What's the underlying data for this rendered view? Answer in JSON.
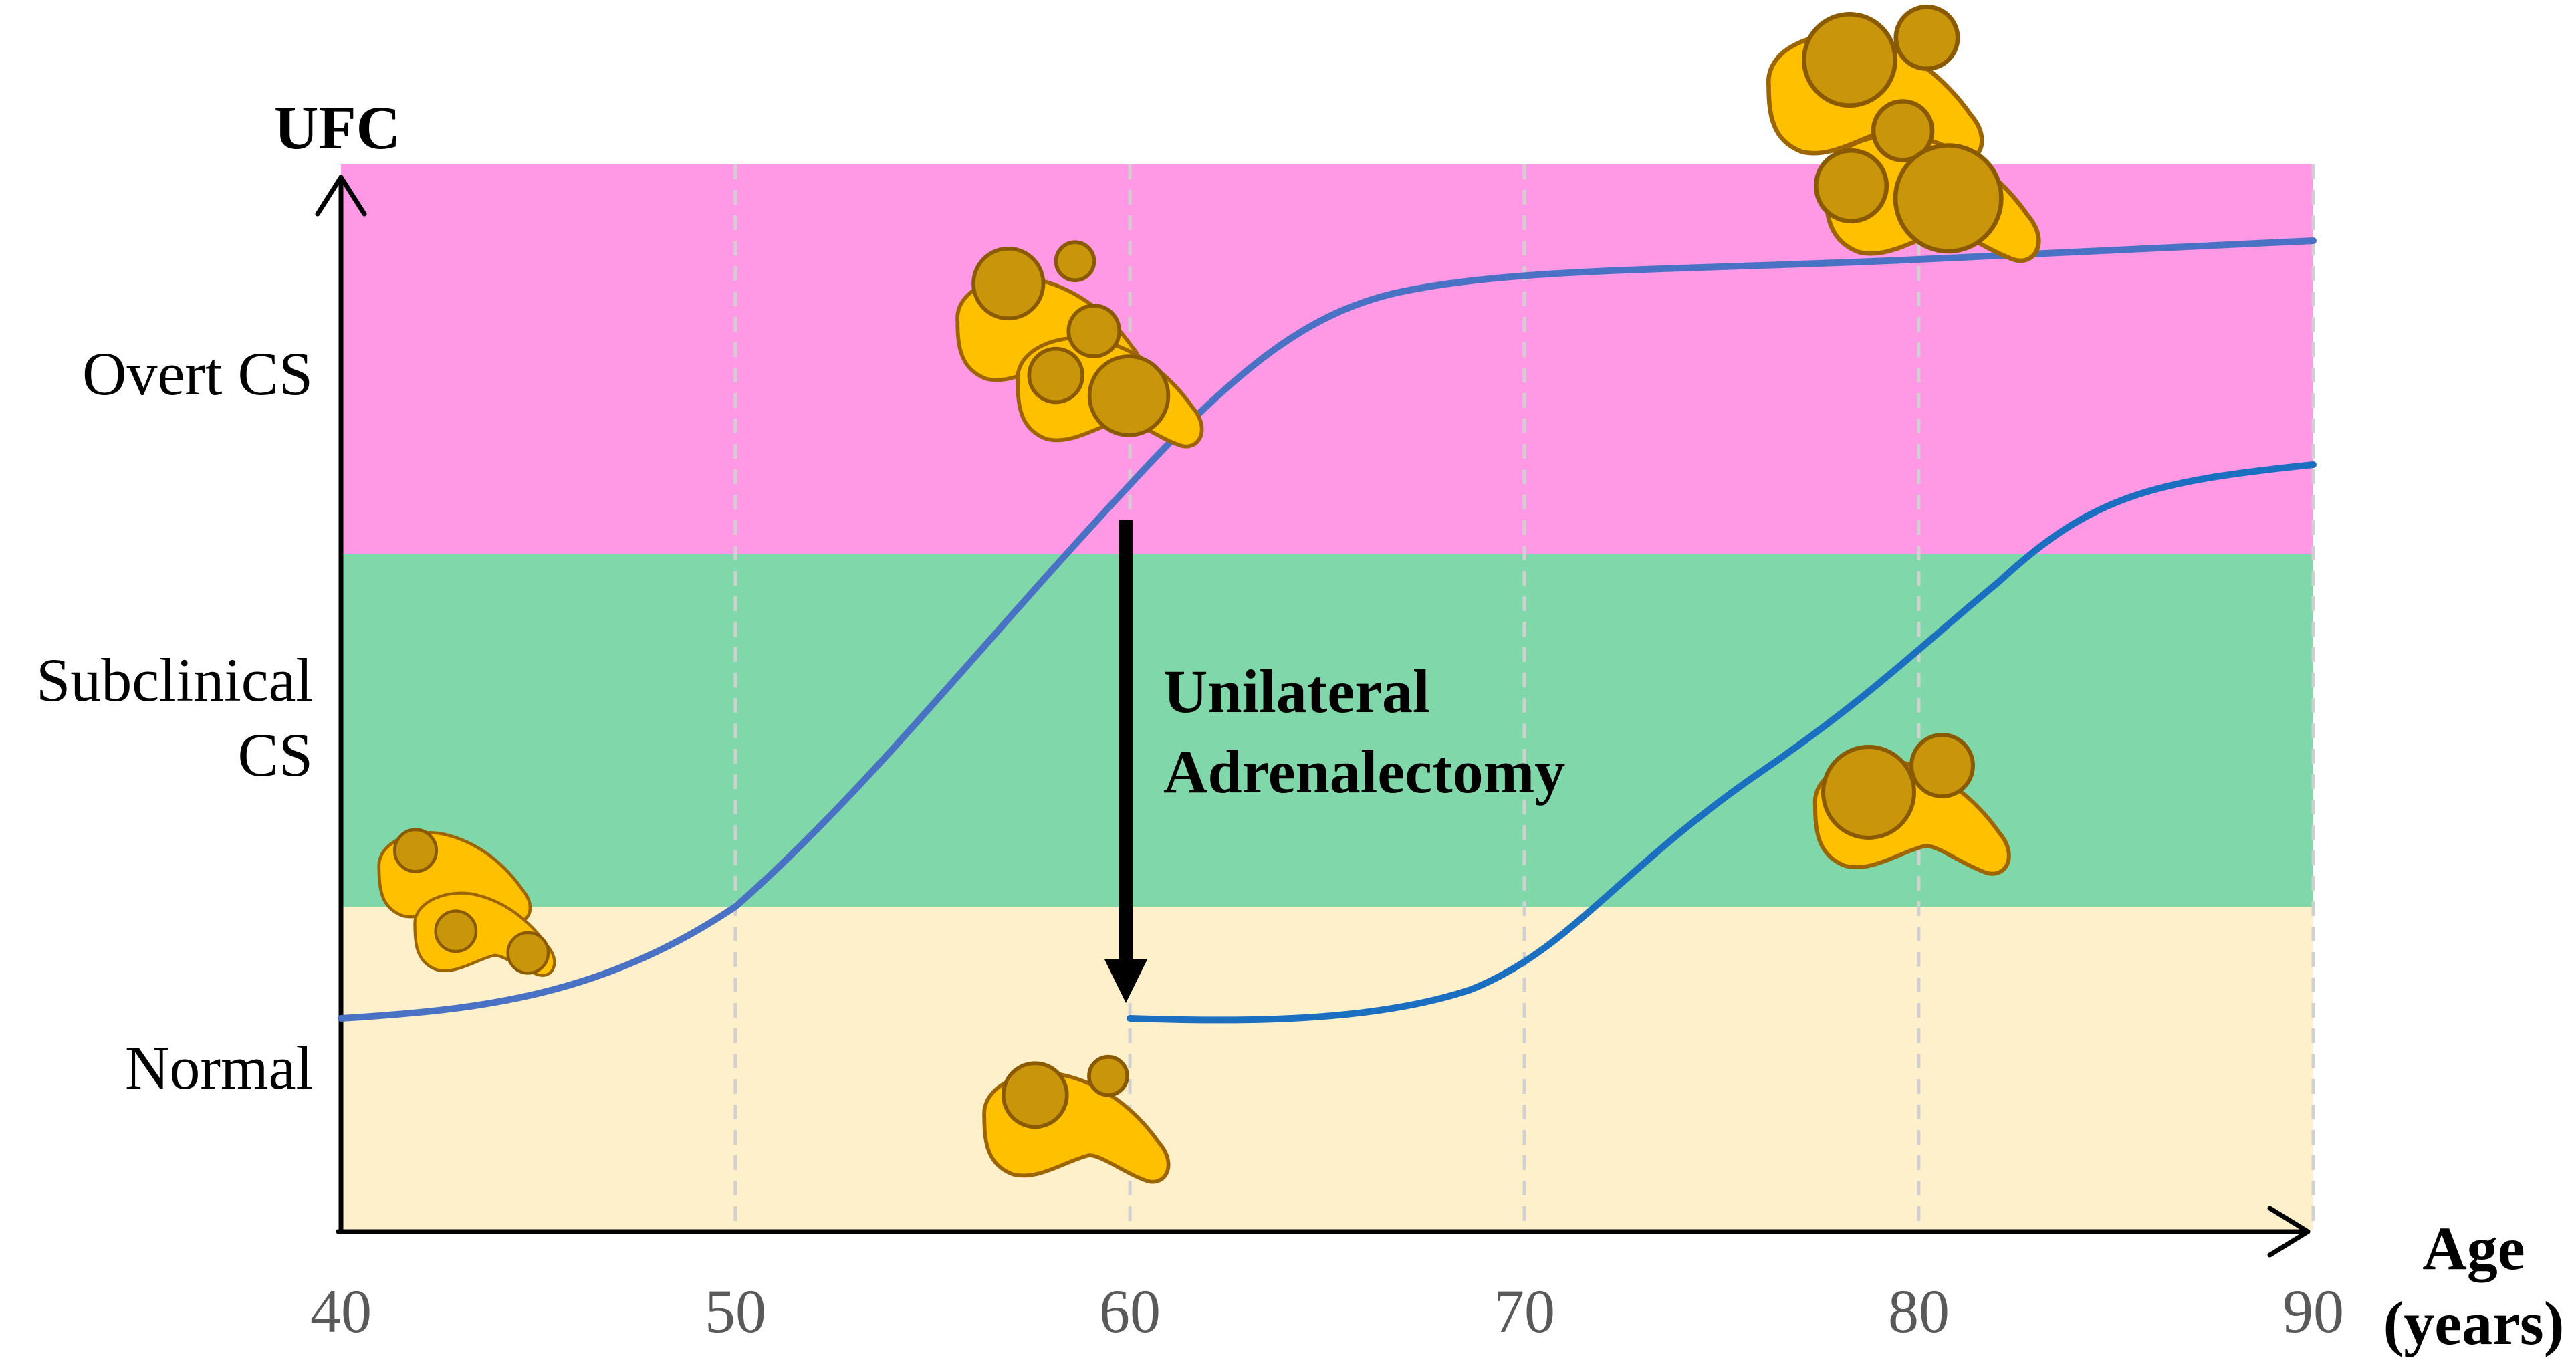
{
  "axes": {
    "y_label": "UFC",
    "x_label_line1": "Age",
    "x_label_line2": "(years)",
    "x_ticks": [
      "40",
      "50",
      "60",
      "70",
      "80",
      "90"
    ]
  },
  "zones": [
    {
      "label_lines": [
        "Overt CS"
      ],
      "color": "#ff99e6"
    },
    {
      "label_lines": [
        "Subclinical",
        "CS"
      ],
      "color": "#80d8aa"
    },
    {
      "label_lines": [
        "Normal"
      ],
      "color": "#fff0cc"
    }
  ],
  "annotation": {
    "line1": "Unilateral",
    "line2": "Adrenalectomy"
  },
  "colors": {
    "curve_untreated": "#4a72c4",
    "curve_treated": "#1a6fc0",
    "gland": "#ffc000",
    "nodule": "#c9950a",
    "arrow": "#000000"
  },
  "icons": [
    "adrenal-gland-icon",
    "adrenal-nodule-icon",
    "arrow-down-icon"
  ]
}
